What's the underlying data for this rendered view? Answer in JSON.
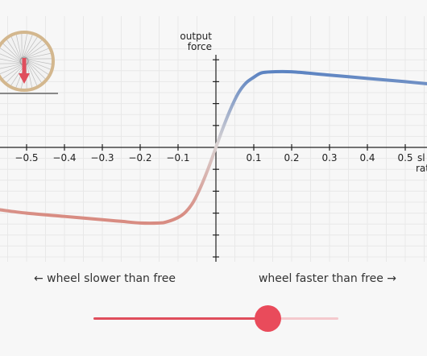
{
  "chart_data": {
    "type": "line",
    "ylabel_lines": [
      "output",
      "force"
    ],
    "xlabel_lines": [
      "sl",
      "rat"
    ],
    "xlim": [
      -0.56,
      0.56
    ],
    "ylim": [
      -1.15,
      1.0
    ],
    "x_ticks": [
      -0.5,
      -0.4,
      -0.3,
      -0.2,
      -0.1,
      0.1,
      0.2,
      0.3,
      0.4,
      0.5
    ],
    "x_tick_labels": [
      "−0.5",
      "−0.4",
      "−0.3",
      "−0.2",
      "−0.1",
      "0.1",
      "0.2",
      "0.3",
      "0.4",
      "0.5"
    ],
    "y_ticks": [
      -1,
      -0.8,
      -0.6,
      -0.4,
      -0.2,
      0.2,
      0.4,
      0.6,
      0.8
    ],
    "grid": true,
    "series": [
      {
        "color_positive": "#5b83c2",
        "color_negative": "#d88c82",
        "color_zero": "#d9d3d3",
        "x": [
          -0.57,
          -0.5,
          -0.4,
          -0.3,
          -0.25,
          -0.2,
          -0.15,
          -0.13,
          -0.1,
          -0.08,
          -0.06,
          -0.04,
          -0.02,
          0,
          0.02,
          0.04,
          0.06,
          0.08,
          0.1,
          0.12,
          0.15,
          0.2,
          0.3,
          0.4,
          0.5,
          0.56
        ],
        "y": [
          -0.57,
          -0.6,
          -0.63,
          -0.66,
          -0.675,
          -0.69,
          -0.69,
          -0.68,
          -0.64,
          -0.59,
          -0.5,
          -0.36,
          -0.19,
          0,
          0.19,
          0.36,
          0.5,
          0.59,
          0.64,
          0.68,
          0.69,
          0.69,
          0.66,
          0.63,
          0.6,
          0.58
        ]
      }
    ]
  },
  "inset": {
    "icon": "bicycle-wheel-icon",
    "rim_color": "#d3b78e",
    "arrow_color": "#e04e5c"
  },
  "captions": {
    "left": "← wheel slower than free",
    "right": "wheel faster than free →"
  },
  "slider": {
    "value": 0.71,
    "fill_color": "#e04e5c",
    "track_color": "#f4c9cd"
  }
}
